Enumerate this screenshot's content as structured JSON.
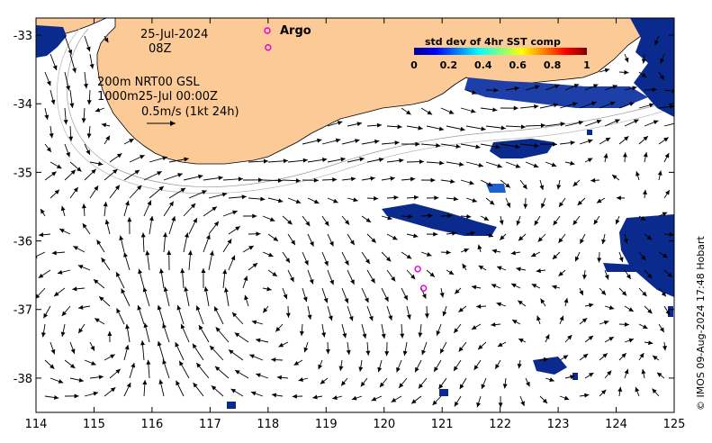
{
  "map": {
    "date_line1": "25-Jul-2024",
    "date_line2": "08Z",
    "legend_line1": "200m  NRT00 GSL",
    "legend_line2": "1000m25-Jul 00:00Z",
    "scale_label": "0.5m/s (1kt 24h)",
    "argo_label": "Argo",
    "credit": "© IMOS 09-Aug-2024 17:48 Hobart",
    "colors": {
      "land": "#fbca96",
      "sst_dark": "#0b2a8e",
      "sst_mid": "#1f5fd0",
      "argo": "#e000e0",
      "isobath": "#9a9a9a"
    }
  },
  "colorbar": {
    "title": "std dev of 4hr SST comp",
    "ticks": [
      "0",
      "0.2",
      "0.4",
      "0.6",
      "0.8",
      "1"
    ]
  },
  "axes": {
    "x_ticks": [
      "114",
      "115",
      "116",
      "117",
      "118",
      "119",
      "120",
      "121",
      "122",
      "123",
      "124",
      "125"
    ],
    "y_ticks": [
      "-33",
      "-34",
      "-35",
      "-36",
      "-37",
      "-38"
    ]
  },
  "argo_floats": [
    {
      "lon": 118.0,
      "lat": -33.18
    },
    {
      "lon": 120.58,
      "lat": -36.41
    },
    {
      "lon": 120.68,
      "lat": -36.69
    }
  ]
}
